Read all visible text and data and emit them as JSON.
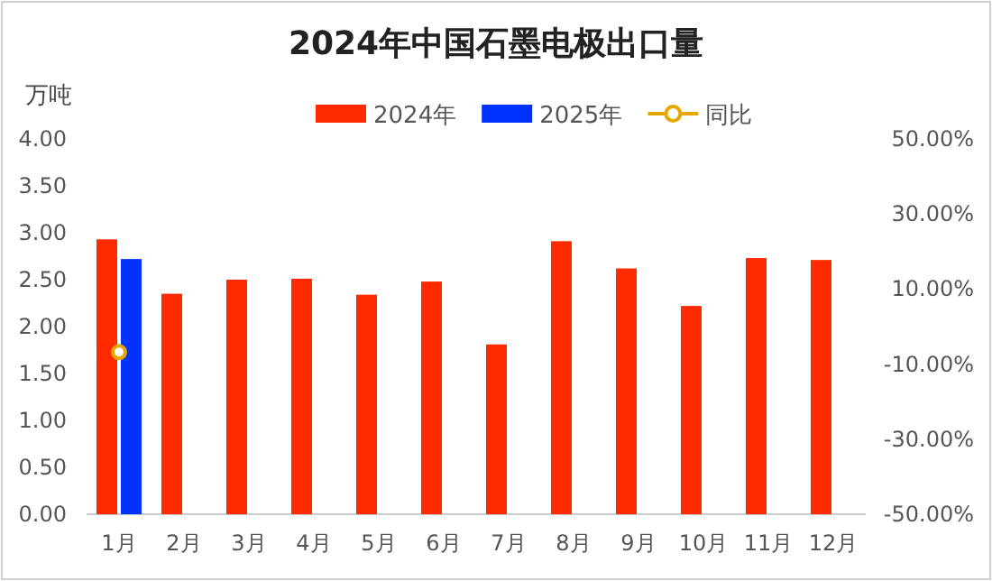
{
  "chart_data": {
    "type": "bar",
    "title": "2024年中国石墨电极出口量",
    "ylabel": "万吨",
    "categories": [
      "1月",
      "2月",
      "3月",
      "4月",
      "5月",
      "6月",
      "7月",
      "8月",
      "9月",
      "10月",
      "11月",
      "12月"
    ],
    "series": [
      {
        "name": "2024年",
        "color": "#ff2a00",
        "values": [
          2.93,
          2.35,
          2.5,
          2.51,
          2.34,
          2.48,
          1.81,
          2.91,
          2.62,
          2.22,
          2.73,
          2.71
        ]
      },
      {
        "name": "2025年",
        "color": "#0033ff",
        "values": [
          2.72,
          null,
          null,
          null,
          null,
          null,
          null,
          null,
          null,
          null,
          null,
          null
        ]
      },
      {
        "name": "同比",
        "type": "line",
        "axis": "y2",
        "color": "#e6a800",
        "values": [
          -6.8,
          null,
          null,
          null,
          null,
          null,
          null,
          null,
          null,
          null,
          null,
          null
        ]
      }
    ],
    "ylim": [
      0,
      4
    ],
    "yticks": [
      {
        "value": 0,
        "label": "0.00"
      },
      {
        "value": 0.5,
        "label": "0.50"
      },
      {
        "value": 1,
        "label": "1.00"
      },
      {
        "value": 1.5,
        "label": "1.50"
      },
      {
        "value": 2,
        "label": "2.00"
      },
      {
        "value": 2.5,
        "label": "2.50"
      },
      {
        "value": 3,
        "label": "3.00"
      },
      {
        "value": 3.5,
        "label": "3.50"
      },
      {
        "value": 4,
        "label": "4.00"
      }
    ],
    "y2lim": [
      -50,
      50
    ],
    "y2ticks": [
      {
        "value": 50,
        "label": "50.00%"
      },
      {
        "value": 30,
        "label": "30.00%"
      },
      {
        "value": 10,
        "label": "10.00%"
      },
      {
        "value": -10,
        "label": "-10.00%"
      },
      {
        "value": -30,
        "label": "-30.00%"
      },
      {
        "value": -50,
        "label": "-50.00%"
      }
    ],
    "legend": "top",
    "marker": "circle",
    "grid": false
  }
}
